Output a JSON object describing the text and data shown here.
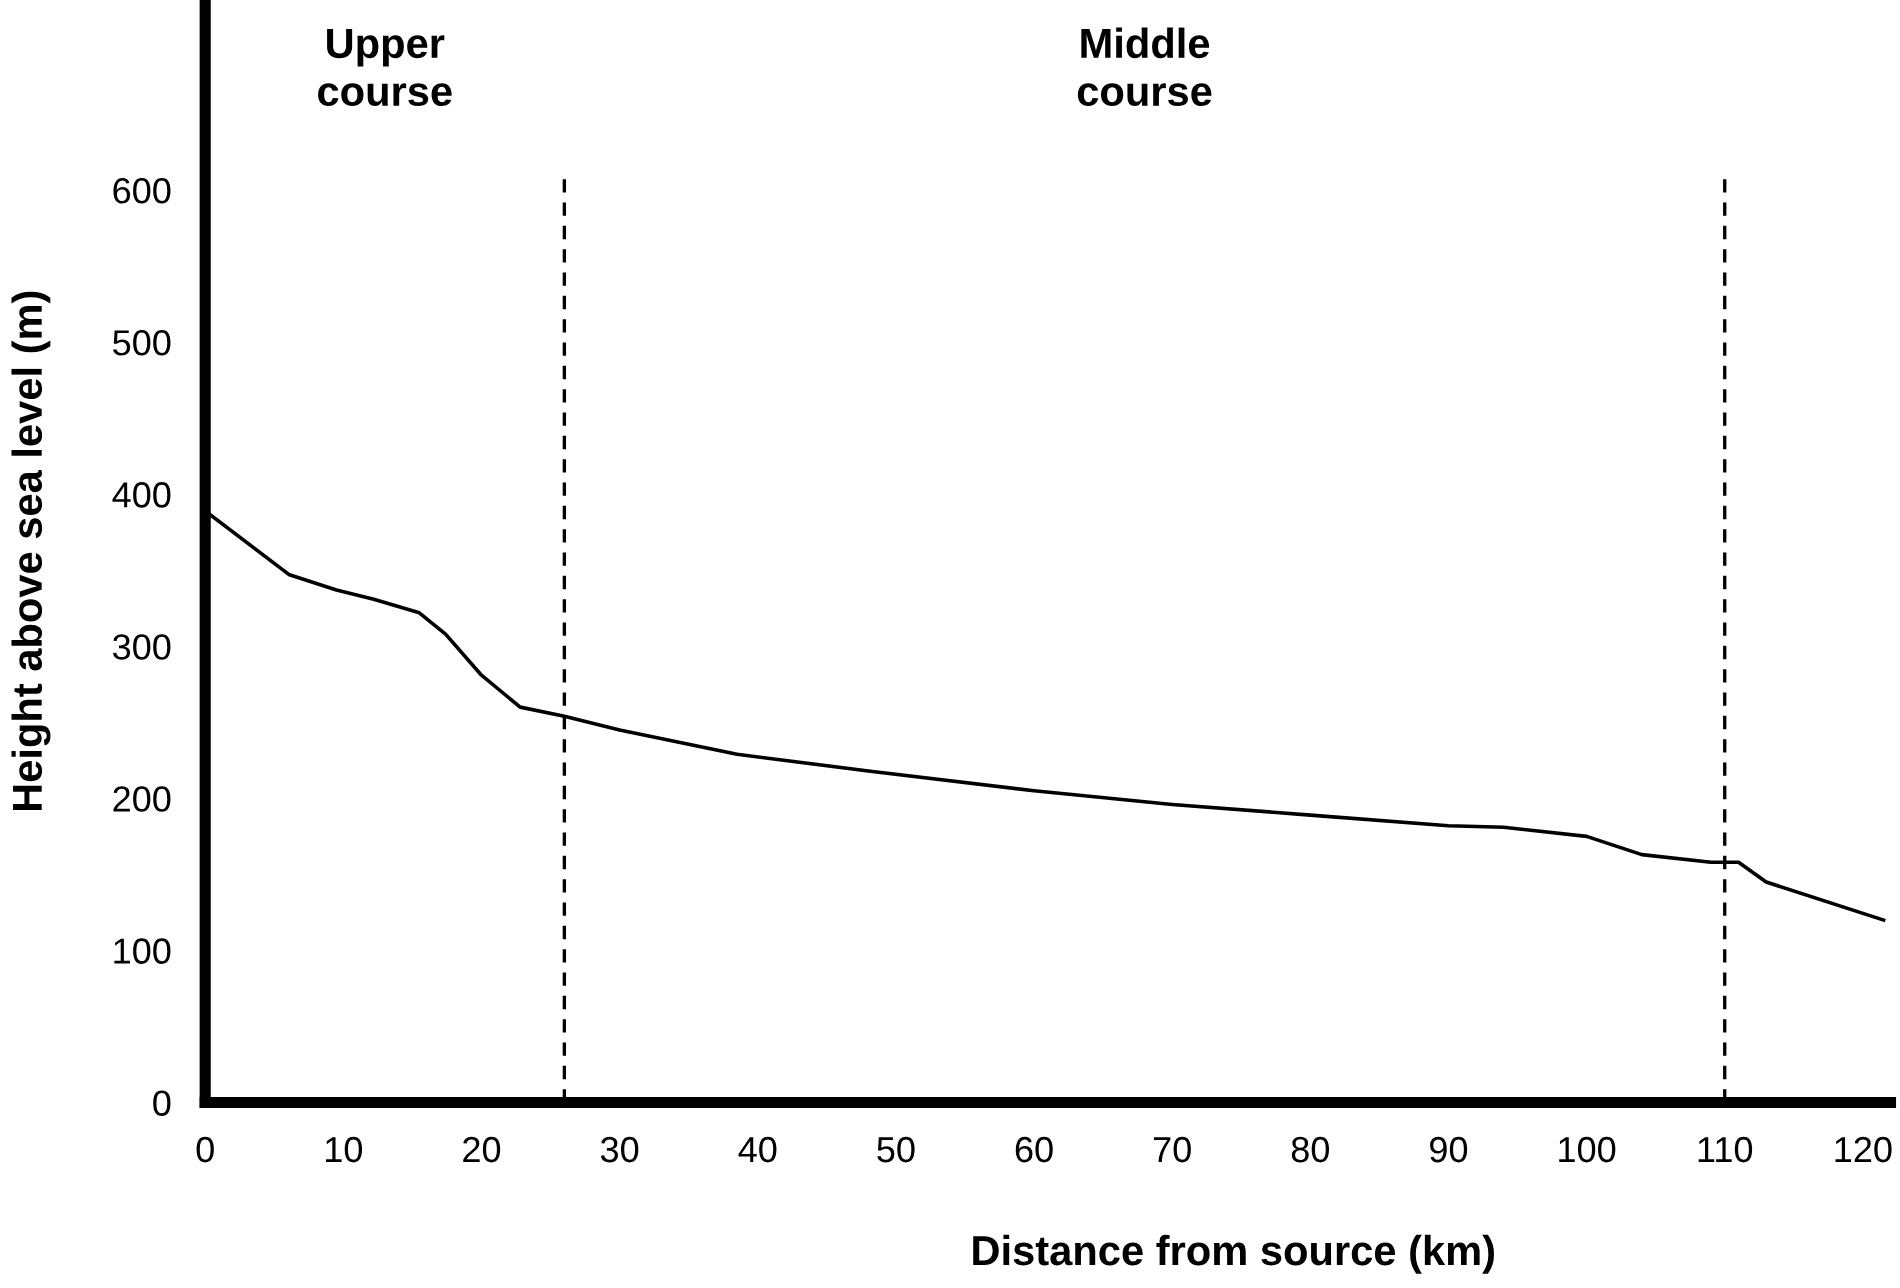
{
  "chart_data": {
    "type": "line",
    "xlabel": "Distance from source (km)",
    "ylabel": "Height above sea level (m)",
    "annotations": [
      "Upper\ncourse",
      "Middle\ncourse"
    ],
    "x": [
      0,
      6.1,
      9.5,
      12.2,
      15.5,
      17.4,
      20,
      22.8,
      26,
      30,
      38.5,
      48,
      60,
      70,
      80,
      90,
      94,
      100,
      104,
      109,
      111,
      113,
      121.5
    ],
    "series": [
      {
        "color": "#000000",
        "values": [
          389,
          347,
          337,
          331,
          322,
          308,
          281,
          260,
          254,
          245,
          229,
          218,
          205,
          196,
          189,
          182,
          181,
          175,
          163,
          158,
          158,
          145,
          120
        ]
      }
    ],
    "xlim": [
      0,
      122
    ],
    "ylim": [
      0,
      725
    ],
    "xticks": [
      0,
      10,
      20,
      30,
      40,
      50,
      60,
      70,
      80,
      90,
      100,
      110,
      120
    ],
    "yticks": [
      0,
      100,
      200,
      300,
      400,
      500,
      600
    ],
    "ref_lines": [
      {
        "axis": "x",
        "value": 26,
        "line_style": "dashed",
        "color": "#000000"
      },
      {
        "axis": "x",
        "value": 110,
        "line_style": "dashed",
        "color": "#000000"
      }
    ],
    "grid": false,
    "legend": false,
    "marker": "none",
    "line_style": "solid"
  }
}
